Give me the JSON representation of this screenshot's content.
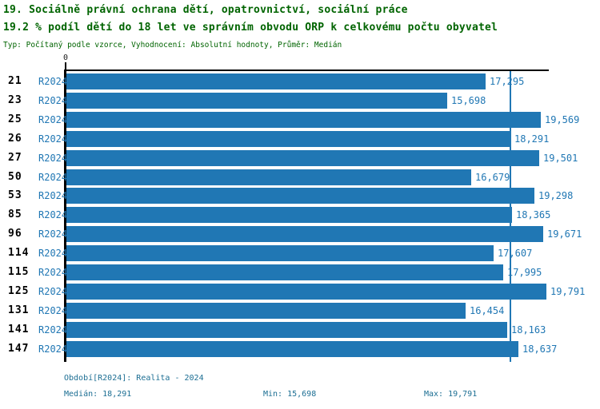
{
  "header": {
    "title_line1": "19. Sociálně právní ochrana dětí, opatrovnictví, sociální práce",
    "title_line2": "19.2 % podíl dětí do 18 let ve správním obvodu ORP k celkovému počtu obyvatel",
    "meta_line": "Typ: Počítaný podle vzorce, Vyhodnocení: Absolutní hodnoty, Průměr: Medián"
  },
  "chart_data": {
    "type": "bar",
    "orientation": "horizontal",
    "x_axis": {
      "min": 0,
      "max": 19791,
      "tick_labels": [
        "0"
      ]
    },
    "axis_tick_label": "0",
    "series_name": "R2024",
    "median_value": 18291,
    "grid": false,
    "legend": "none",
    "rows": [
      {
        "category": "21",
        "series": "R2024",
        "value": 17295,
        "value_label": "17,295"
      },
      {
        "category": "23",
        "series": "R2024",
        "value": 15698,
        "value_label": "15,698"
      },
      {
        "category": "25",
        "series": "R2024",
        "value": 19569,
        "value_label": "19,569"
      },
      {
        "category": "26",
        "series": "R2024",
        "value": 18291,
        "value_label": "18,291"
      },
      {
        "category": "27",
        "series": "R2024",
        "value": 19501,
        "value_label": "19,501"
      },
      {
        "category": "50",
        "series": "R2024",
        "value": 16679,
        "value_label": "16,679"
      },
      {
        "category": "53",
        "series": "R2024",
        "value": 19298,
        "value_label": "19,298"
      },
      {
        "category": "85",
        "series": "R2024",
        "value": 18365,
        "value_label": "18,365"
      },
      {
        "category": "96",
        "series": "R2024",
        "value": 19671,
        "value_label": "19,671"
      },
      {
        "category": "114",
        "series": "R2024",
        "value": 17607,
        "value_label": "17,607"
      },
      {
        "category": "115",
        "series": "R2024",
        "value": 17995,
        "value_label": "17,995"
      },
      {
        "category": "125",
        "series": "R2024",
        "value": 19791,
        "value_label": "19,791"
      },
      {
        "category": "131",
        "series": "R2024",
        "value": 16454,
        "value_label": "16,454"
      },
      {
        "category": "141",
        "series": "R2024",
        "value": 18163,
        "value_label": "18,163"
      },
      {
        "category": "147",
        "series": "R2024",
        "value": 18637,
        "value_label": "18,637"
      }
    ]
  },
  "footer": {
    "period": "Období[R2024]: Realita - 2024",
    "median": "Medián: 18,291",
    "min": "Min: 15,698",
    "max": "Max: 19,791"
  },
  "colors": {
    "title_green": "#006400",
    "bar_blue": "#2077b4",
    "value_label_blue": "#2077b4",
    "median_line_blue": "#2077b4",
    "footer_teal": "#1c6e93",
    "axis_black": "#000000",
    "background": "#ffffff"
  }
}
